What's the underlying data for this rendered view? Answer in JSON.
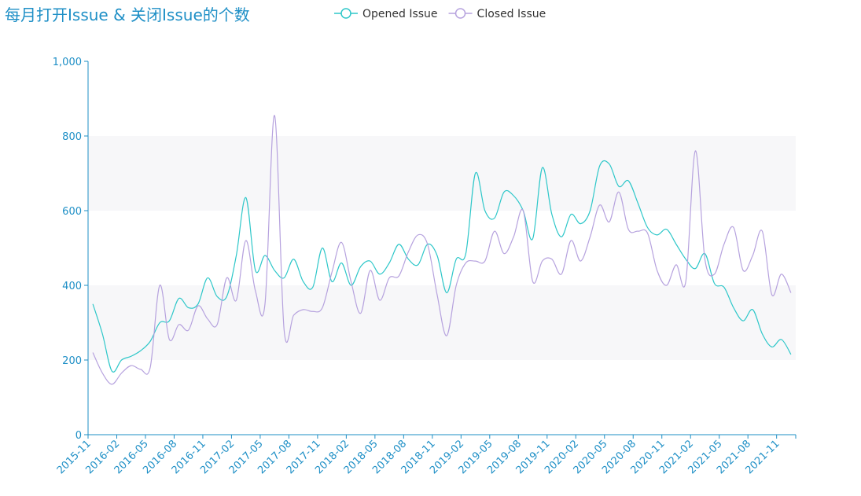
{
  "chart_data": {
    "type": "line",
    "title": "每月打开Issue & 关闭Issue的个数",
    "categories": [
      "2015-11",
      null,
      null,
      "2016-02",
      null,
      null,
      "2016-05",
      null,
      null,
      "2016-08",
      null,
      null,
      "2016-11",
      null,
      null,
      "2017-02",
      null,
      null,
      "2017-05",
      null,
      null,
      "2017-08",
      null,
      null,
      "2017-11",
      null,
      null,
      "2018-02",
      null,
      null,
      "2018-05",
      null,
      null,
      "2018-08",
      null,
      null,
      "2018-11",
      null,
      null,
      "2019-02",
      null,
      null,
      "2019-05",
      null,
      null,
      "2019-08",
      null,
      null,
      "2019-11",
      null,
      null,
      "2020-02",
      null,
      null,
      "2020-05",
      null,
      null,
      "2020-08",
      null,
      null,
      "2020-11",
      null,
      null,
      "2021-02",
      null,
      null,
      "2021-05",
      null,
      null,
      "2021-08",
      null,
      null,
      "2021-11",
      null
    ],
    "series": [
      {
        "name": "Opened Issue",
        "color": "#2ec7c9",
        "values": [
          350,
          270,
          170,
          200,
          210,
          225,
          250,
          300,
          305,
          365,
          340,
          350,
          420,
          370,
          370,
          480,
          635,
          440,
          480,
          440,
          420,
          470,
          410,
          395,
          500,
          410,
          460,
          400,
          450,
          465,
          430,
          460,
          510,
          470,
          455,
          510,
          480,
          380,
          470,
          485,
          700,
          600,
          580,
          650,
          640,
          600,
          525,
          715,
          590,
          530,
          590,
          565,
          600,
          720,
          725,
          665,
          680,
          620,
          555,
          535,
          550,
          510,
          470,
          445,
          485,
          405,
          395,
          340,
          305,
          335,
          270,
          235,
          255,
          215
        ]
      },
      {
        "name": "Closed Issue",
        "color": "#b6a2de",
        "values": [
          220,
          165,
          135,
          165,
          185,
          175,
          180,
          400,
          255,
          295,
          280,
          345,
          310,
          295,
          420,
          360,
          520,
          385,
          350,
          855,
          280,
          320,
          335,
          330,
          340,
          435,
          515,
          410,
          325,
          440,
          360,
          420,
          425,
          490,
          535,
          510,
          375,
          265,
          400,
          460,
          465,
          465,
          545,
          485,
          530,
          600,
          410,
          465,
          470,
          430,
          520,
          465,
          530,
          615,
          570,
          650,
          550,
          545,
          540,
          440,
          400,
          455,
          410,
          760,
          470,
          430,
          510,
          555,
          440,
          480,
          545,
          375,
          430,
          380
        ]
      }
    ],
    "ylim": [
      0,
      1000
    ],
    "yticks": [
      0,
      200,
      400,
      600,
      800,
      {
        "value": 1000,
        "label": "1,000"
      }
    ],
    "split_area": true,
    "smooth": true
  }
}
